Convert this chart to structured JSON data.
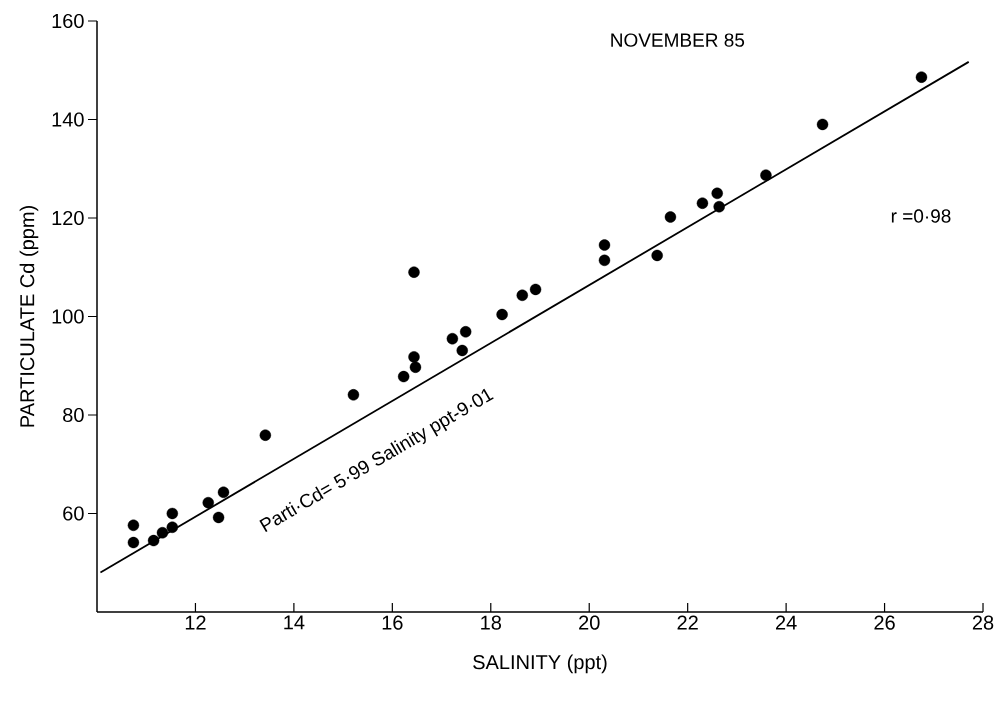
{
  "chart_data": {
    "type": "scatter",
    "title": "NOVEMBER 85",
    "xlabel": "SALINITY (ppt)",
    "ylabel": "PARTICULATE  Cd (ppm)",
    "annotations": [
      "r =0·98",
      "Parti·Cd= 5·99 Salinity ppt-9·01"
    ],
    "xlim": [
      10,
      28
    ],
    "ylim": [
      40,
      160
    ],
    "xticks": [
      12,
      14,
      16,
      18,
      20,
      22,
      24,
      26,
      28
    ],
    "yticks": [
      60,
      80,
      100,
      120,
      140,
      160
    ],
    "series": [
      {
        "color": "#000000",
        "marker": "circle",
        "x": [
          10.74,
          10.74,
          11.15,
          11.33,
          11.53,
          11.53,
          12.26,
          12.57,
          12.47,
          13.42,
          15.21,
          16.44,
          16.23,
          16.44,
          16.47,
          17.22,
          17.49,
          17.42,
          18.23,
          18.64,
          18.91,
          20.31,
          20.31,
          21.38,
          21.65,
          22.3,
          22.6,
          22.64,
          23.59,
          24.74,
          26.75
        ],
        "values": [
          57.6,
          54.1,
          54.5,
          56.1,
          57.2,
          60,
          62.2,
          64.3,
          59.2,
          75.9,
          84.1,
          109,
          87.8,
          91.8,
          89.7,
          95.5,
          96.9,
          93.1,
          100.4,
          104.3,
          105.5,
          114.5,
          111.4,
          112.4,
          120.2,
          123,
          125,
          122.3,
          128.7,
          139,
          148.6
        ]
      },
      {
        "type": "line",
        "color": "#000000",
        "marker": "none",
        "line_style": "solid",
        "x": [
          10.07,
          27.71
        ],
        "values": [
          48,
          151.7
        ]
      }
    ]
  }
}
